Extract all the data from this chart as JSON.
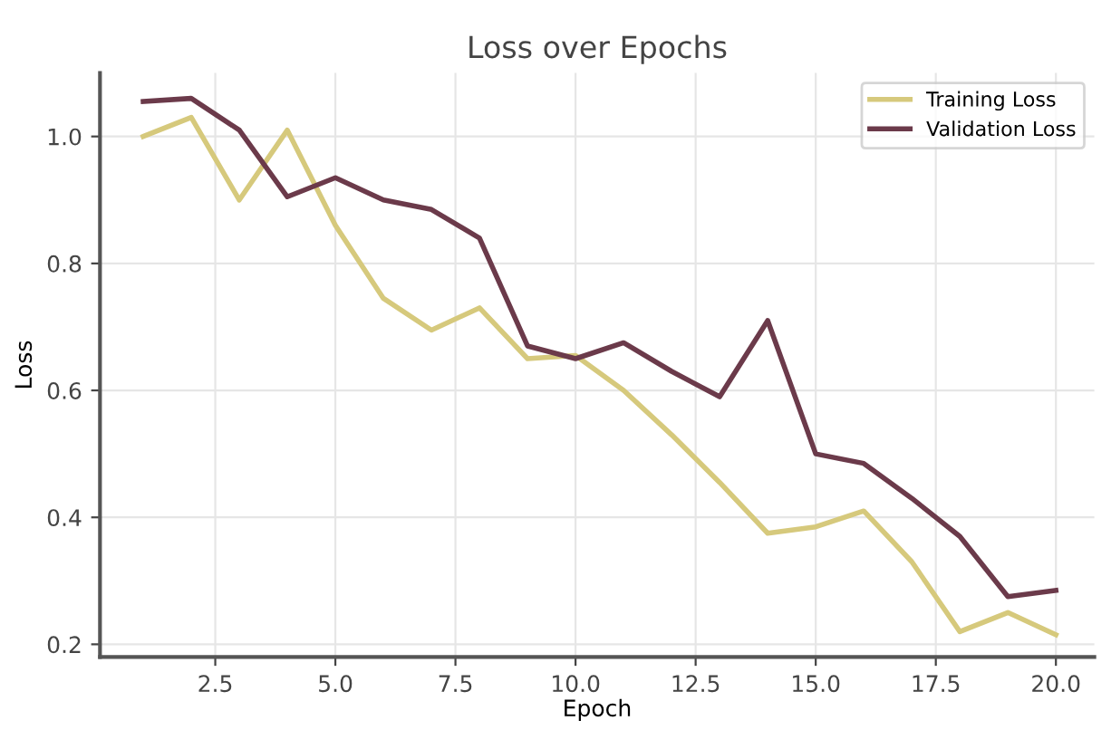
{
  "chart_data": {
    "type": "line",
    "title": "Loss over Epochs",
    "xlabel": "Epoch",
    "ylabel": "Loss",
    "x": [
      1,
      2,
      3,
      4,
      5,
      6,
      7,
      8,
      9,
      10,
      11,
      12,
      13,
      14,
      15,
      16,
      17,
      18,
      19,
      20
    ],
    "series": [
      {
        "name": "Training Loss",
        "color": "#d6c97c",
        "values": [
          1.0,
          1.03,
          0.9,
          1.01,
          0.86,
          0.745,
          0.695,
          0.73,
          0.65,
          0.655,
          0.6,
          0.53,
          0.455,
          0.375,
          0.385,
          0.41,
          0.33,
          0.22,
          0.25,
          0.215
        ]
      },
      {
        "name": "Validation Loss",
        "color": "#6b3a4a",
        "values": [
          1.055,
          1.06,
          1.01,
          0.905,
          0.935,
          0.9,
          0.885,
          0.84,
          0.67,
          0.65,
          0.675,
          0.63,
          0.59,
          0.71,
          0.5,
          0.485,
          0.43,
          0.37,
          0.275,
          0.285
        ]
      }
    ],
    "xlim": [
      0.1,
      20.8
    ],
    "xticks": [
      {
        "value": 2.5,
        "label": "2.5"
      },
      {
        "value": 5,
        "label": "5.0"
      },
      {
        "value": 7.5,
        "label": "7.5"
      },
      {
        "value": 10,
        "label": "10.0"
      },
      {
        "value": 12.5,
        "label": "12.5"
      },
      {
        "value": 15,
        "label": "15.0"
      },
      {
        "value": 17.5,
        "label": "17.5"
      },
      {
        "value": 20,
        "label": "20.0"
      }
    ],
    "ylim": [
      0.18,
      1.1
    ],
    "yticks": [
      {
        "value": 0.2,
        "label": "0.2"
      },
      {
        "value": 0.4,
        "label": "0.4"
      },
      {
        "value": 0.6,
        "label": "0.6"
      },
      {
        "value": 0.8,
        "label": "0.8"
      },
      {
        "value": 1.0,
        "label": "1.0"
      }
    ],
    "grid": true,
    "legend": "top right"
  }
}
